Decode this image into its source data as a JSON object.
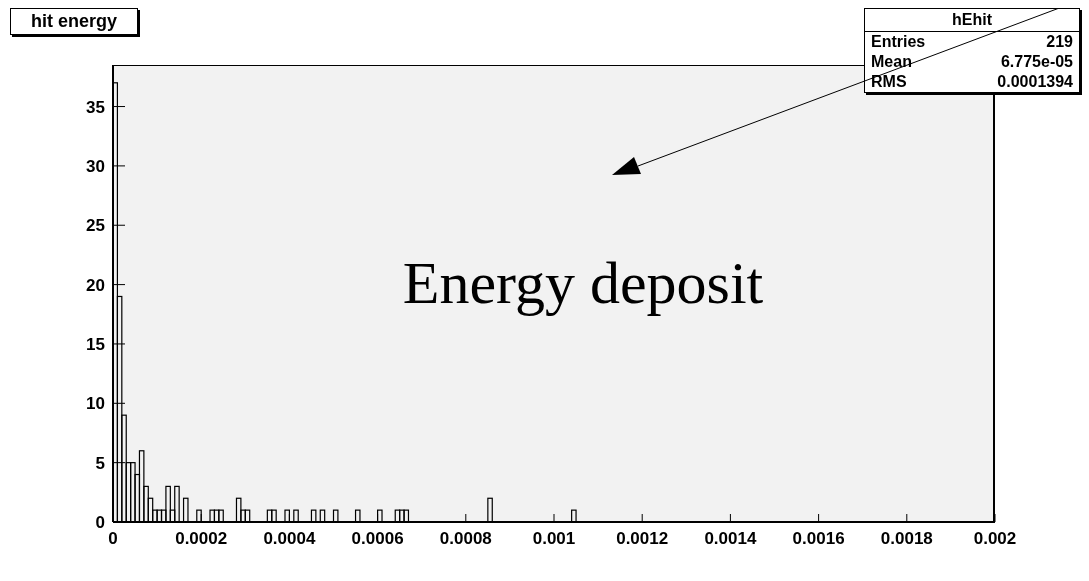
{
  "chart_data": {
    "type": "histogram",
    "title": "hit energy",
    "bins": [
      0,
      1e-05,
      2e-05,
      3e-05,
      4e-05,
      5e-05,
      6e-05,
      7e-05,
      8e-05,
      9e-05,
      0.0001,
      0.00011,
      0.00012,
      0.00013,
      0.00014,
      0.00015,
      0.00016,
      0.00017,
      0.00018,
      0.00019,
      0.0002,
      0.00021,
      0.00022,
      0.00023,
      0.00024,
      0.00025,
      0.00026,
      0.00027,
      0.00028,
      0.00029,
      0.0003,
      0.00031,
      0.00032,
      0.00033,
      0.00034,
      0.00035,
      0.00036,
      0.00037,
      0.00038,
      0.00039,
      0.0004,
      0.00041,
      0.00042,
      0.00043,
      0.00044,
      0.00045,
      0.00046,
      0.00047,
      0.00048,
      0.00049,
      0.0005,
      0.00051,
      0.00052,
      0.00053,
      0.00054,
      0.00055,
      0.00056,
      0.00057,
      0.00058,
      0.00059,
      0.0006,
      0.00061,
      0.00062,
      0.00063,
      0.00064,
      0.00065,
      0.00066,
      0.00067,
      0.00068,
      0.00069,
      0.0007,
      0.00071,
      0.00072,
      0.00073,
      0.00074,
      0.00075,
      0.00076,
      0.00077,
      0.00078,
      0.00079,
      0.0008,
      0.00081,
      0.00082,
      0.00083,
      0.00084,
      0.00085,
      0.00086,
      0.00087,
      0.00088,
      0.00089,
      0.0009,
      0.00091,
      0.00092,
      0.00093,
      0.00094,
      0.00095,
      0.00096,
      0.00097,
      0.00098,
      0.00099,
      0.001,
      0.00101,
      0.00102,
      0.00103,
      0.00104,
      0.00105,
      0.00106
    ],
    "values": [
      37,
      19,
      9,
      5,
      5,
      4,
      6,
      3,
      2,
      1,
      1,
      1,
      3,
      1,
      3,
      0,
      2,
      0,
      0,
      1,
      0,
      0,
      1,
      1,
      1,
      0,
      0,
      0,
      2,
      1,
      1,
      0,
      0,
      0,
      0,
      1,
      1,
      0,
      0,
      1,
      0,
      1,
      0,
      0,
      0,
      1,
      0,
      1,
      0,
      0,
      1,
      0,
      0,
      0,
      0,
      1,
      0,
      0,
      0,
      0,
      1,
      0,
      0,
      0,
      1,
      1,
      1,
      0,
      0,
      0,
      0,
      0,
      0,
      0,
      0,
      0,
      0,
      0,
      0,
      0,
      0,
      0,
      0,
      0,
      0,
      2,
      0,
      0,
      0,
      0,
      0,
      0,
      0,
      0,
      0,
      0,
      0,
      0,
      0,
      0,
      0,
      0,
      0,
      0,
      1,
      0
    ],
    "color": "#000000",
    "xlim": [
      0,
      0.002
    ],
    "xticks": [
      0,
      0.0002,
      0.0004,
      0.0006,
      0.0008,
      0.001,
      0.0012,
      0.0014,
      0.0016,
      0.0018,
      0.002
    ],
    "ylim": [
      0,
      38.5
    ],
    "yticks": [
      0,
      5,
      10,
      15,
      20,
      25,
      30,
      35
    ],
    "annotations": [
      "hEhit",
      "Entries",
      "219",
      "Mean",
      "6.775e-05",
      "RMS",
      "0.0001394",
      "Energy deposit"
    ]
  }
}
